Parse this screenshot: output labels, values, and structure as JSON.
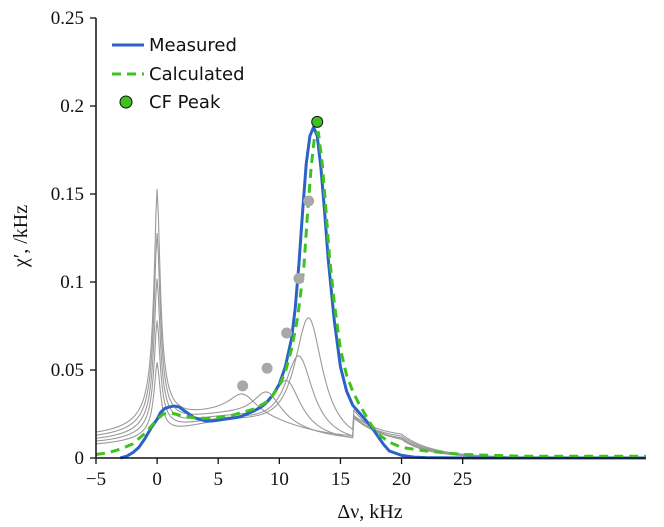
{
  "chart_data": {
    "type": "line",
    "title": "",
    "xlabel": "Δν, kHz",
    "ylabel": "χ′, /kHz",
    "xlim": [
      -5,
      40
    ],
    "ylim": [
      0,
      0.25
    ],
    "x_ticks": [
      -5,
      0,
      5,
      10,
      15,
      20,
      25
    ],
    "x_tick_labels": [
      "−5",
      "0",
      "5",
      "10",
      "15",
      "20",
      "25"
    ],
    "y_ticks": [
      0,
      0.05,
      0.1,
      0.15,
      0.2,
      0.25
    ],
    "y_tick_labels": [
      "0",
      "0.05",
      "0.1",
      "0.15",
      "0.2",
      "0.25"
    ],
    "legend_position": "top-left",
    "colors": {
      "measured": "#2c62c8",
      "calculated": "#3ec220",
      "peak_fill": "#3ec220",
      "family": "#9a9a9a",
      "family_points": "#a8a8a8",
      "axis": "#111111"
    },
    "series": [
      {
        "name": "Measured",
        "style": "solid",
        "x": [
          -3,
          -2.5,
          -2,
          -1.5,
          -1,
          -0.5,
          0,
          0.3,
          0.6,
          1,
          1.4,
          1.8,
          2.2,
          2.6,
          3,
          3.5,
          4,
          4.5,
          5,
          5.5,
          6,
          6.5,
          7,
          7.5,
          8,
          8.5,
          9,
          9.5,
          10,
          10.5,
          11,
          11.3,
          11.6,
          11.9,
          12.2,
          12.5,
          12.8,
          13.1,
          13.4,
          13.7,
          14,
          14.5,
          15,
          15.5,
          16,
          16.5,
          17,
          17.5,
          18,
          18.5,
          19,
          20,
          21,
          22,
          24,
          26,
          30,
          36,
          40
        ],
        "y": [
          0,
          0.001,
          0.003,
          0.006,
          0.011,
          0.017,
          0.022,
          0.026,
          0.028,
          0.029,
          0.0295,
          0.029,
          0.027,
          0.025,
          0.023,
          0.022,
          0.021,
          0.021,
          0.0215,
          0.022,
          0.0225,
          0.023,
          0.024,
          0.0255,
          0.027,
          0.029,
          0.032,
          0.036,
          0.042,
          0.052,
          0.068,
          0.085,
          0.11,
          0.14,
          0.167,
          0.183,
          0.188,
          0.183,
          0.165,
          0.14,
          0.113,
          0.078,
          0.052,
          0.038,
          0.03,
          0.026,
          0.022,
          0.018,
          0.013,
          0.008,
          0.004,
          0.0015,
          0.0005,
          0.0002,
          0.0001,
          0,
          0,
          0,
          0
        ]
      },
      {
        "name": "Calculated",
        "style": "dashed",
        "x": [
          -5,
          -4,
          -3,
          -2,
          -1,
          -0.5,
          0,
          0.5,
          1,
          1.5,
          2,
          3,
          4,
          5,
          6,
          7,
          8,
          8.5,
          9,
          9.5,
          10,
          10.5,
          11,
          11.5,
          12,
          12.3,
          12.6,
          12.9,
          13.2,
          13.5,
          13.8,
          14.1,
          14.5,
          15,
          15.5,
          16,
          16.5,
          17,
          17.5,
          18,
          19,
          20,
          22,
          25,
          30,
          35,
          40
        ],
        "y": [
          0.002,
          0.003,
          0.005,
          0.008,
          0.014,
          0.018,
          0.022,
          0.025,
          0.0255,
          0.025,
          0.024,
          0.023,
          0.0225,
          0.023,
          0.024,
          0.026,
          0.028,
          0.03,
          0.032,
          0.036,
          0.041,
          0.049,
          0.062,
          0.08,
          0.108,
          0.138,
          0.165,
          0.184,
          0.185,
          0.168,
          0.142,
          0.115,
          0.088,
          0.062,
          0.047,
          0.038,
          0.031,
          0.025,
          0.019,
          0.014,
          0.009,
          0.006,
          0.004,
          0.002,
          0.001,
          0.001,
          0.001
        ]
      }
    ],
    "family_peaks": [
      0.148,
      0.123,
      0.097,
      0.073,
      0.049
    ],
    "family_points": [
      {
        "x": 7,
        "y": 0.041
      },
      {
        "x": 9,
        "y": 0.051
      },
      {
        "x": 10.6,
        "y": 0.071
      },
      {
        "x": 11.6,
        "y": 0.102
      },
      {
        "x": 12.4,
        "y": 0.146
      }
    ],
    "cf_peak": {
      "name": "CF Peak",
      "x": 13.1,
      "y": 0.191
    }
  },
  "legend": {
    "items": [
      {
        "label": "Measured"
      },
      {
        "label": "Calculated"
      },
      {
        "label": "CF Peak"
      }
    ]
  }
}
